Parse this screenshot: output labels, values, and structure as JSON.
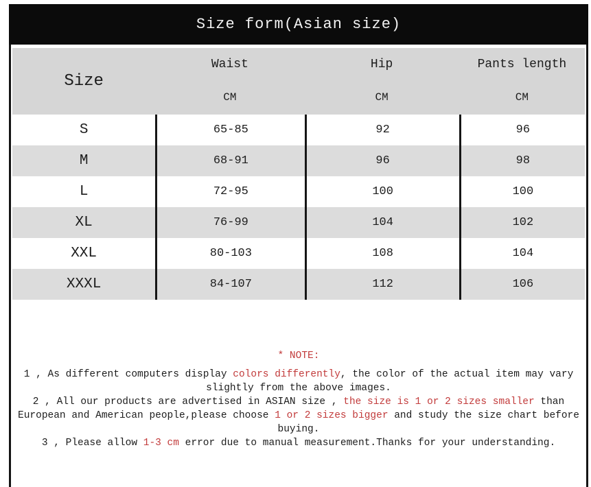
{
  "title": "Size form(Asian size)",
  "colors": {
    "title_bar_bg": "#0b0b0b",
    "title_text": "#f2f2f2",
    "header_bg": "#d6d6d6",
    "row_alt_bg": "#dcdcdc",
    "border": "#141414",
    "text": "#1c1c1c",
    "accent_red": "#c23b3b"
  },
  "table": {
    "size_header": "Size",
    "columns": [
      {
        "label": "Waist",
        "unit": "CM"
      },
      {
        "label": "Hip",
        "unit": "CM"
      },
      {
        "label": "Pants length",
        "unit": "CM"
      }
    ],
    "rows": [
      {
        "size": "S",
        "waist": "65-85",
        "hip": "92",
        "pants_length": "96"
      },
      {
        "size": "M",
        "waist": "68-91",
        "hip": "96",
        "pants_length": "98"
      },
      {
        "size": "L",
        "waist": "72-95",
        "hip": "100",
        "pants_length": "100"
      },
      {
        "size": "XL",
        "waist": "76-99",
        "hip": "104",
        "pants_length": "102"
      },
      {
        "size": "XXL",
        "waist": "80-103",
        "hip": "108",
        "pants_length": "104"
      },
      {
        "size": "XXXL",
        "waist": "84-107",
        "hip": "112",
        "pants_length": "106"
      }
    ]
  },
  "note": {
    "lines": [
      {
        "segments": [
          {
            "t": "* NOTE:",
            "red": true
          }
        ]
      },
      {
        "segments": [
          {
            "t": "1 , As different computers display ",
            "red": false
          },
          {
            "t": "colors differently",
            "red": true
          },
          {
            "t": ", the color of the actual item may vary",
            "red": false
          }
        ]
      },
      {
        "segments": [
          {
            "t": "slightly from the above images.",
            "red": false
          }
        ]
      },
      {
        "segments": [
          {
            "t": "2 , All our products are advertised in ASIAN size , ",
            "red": false
          },
          {
            "t": "the size is 1 or 2 sizes smaller",
            "red": true
          },
          {
            "t": " than",
            "red": false
          }
        ]
      },
      {
        "segments": [
          {
            "t": "European and American people,please choose ",
            "red": false
          },
          {
            "t": "1 or 2 sizes bigger",
            "red": true
          },
          {
            "t": " and study the size chart before",
            "red": false
          }
        ]
      },
      {
        "segments": [
          {
            "t": "buying.",
            "red": false
          }
        ]
      },
      {
        "segments": [
          {
            "t": "3 , Please allow ",
            "red": false
          },
          {
            "t": "1-3 cm",
            "red": true
          },
          {
            "t": " error due to manual measurement.Thanks for your understanding.",
            "red": false
          }
        ]
      }
    ]
  }
}
